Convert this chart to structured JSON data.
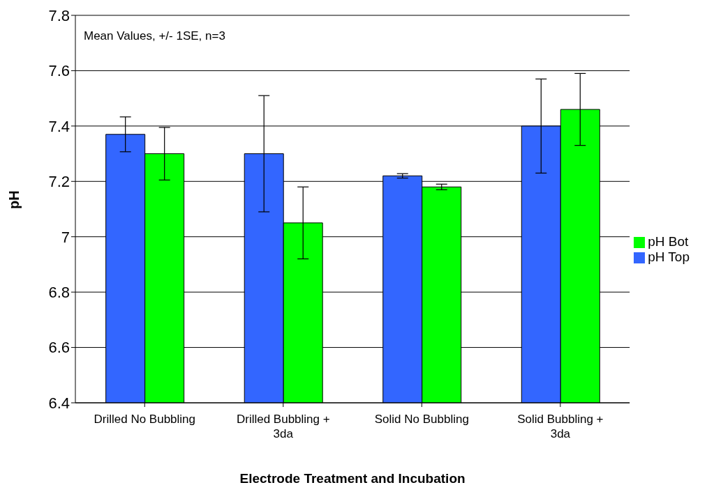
{
  "chart_data": {
    "type": "bar",
    "xlabel": "Electrode Treatment and Incubation",
    "ylabel": "pH",
    "categories": [
      "Drilled No Bubbling",
      "Drilled Bubbling + 3da",
      "Solid No Bubbling",
      "Solid Bubbling + 3da"
    ],
    "series": [
      {
        "name": "pH Top",
        "color": "#3366ff",
        "values": [
          7.37,
          7.3,
          7.22,
          7.4
        ],
        "errors": [
          0.063,
          0.21,
          0.008,
          0.17
        ]
      },
      {
        "name": "pH Bot",
        "color": "#00ff00",
        "values": [
          7.3,
          7.05,
          7.18,
          7.46
        ],
        "errors": [
          0.095,
          0.13,
          0.01,
          0.13
        ]
      }
    ],
    "ylim": [
      6.4,
      7.8
    ],
    "yticks": [
      6.4,
      6.6,
      6.8,
      7,
      7.2,
      7.4,
      7.6,
      7.8
    ],
    "grid": "y",
    "legend": "right",
    "annotations": [
      "Mean Values, +/- 1SE, n=3"
    ]
  }
}
